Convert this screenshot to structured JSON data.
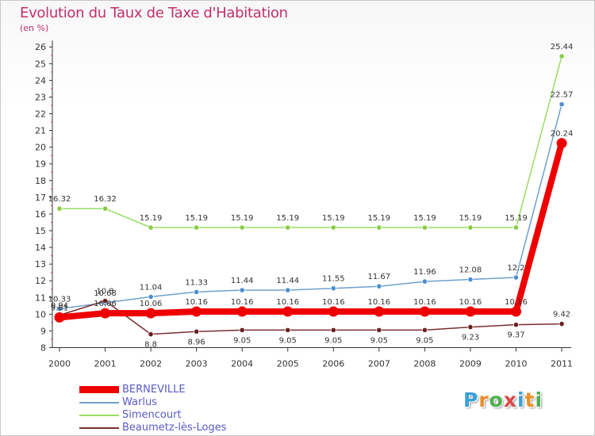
{
  "title": "Evolution du Taux de Taxe d'Habitation",
  "subtitle": "(en %)",
  "logo": {
    "text": "Proxiti",
    "letters": [
      "P",
      "r",
      "o",
      "x",
      "i",
      "t",
      "i"
    ],
    "colors": [
      "#3aa0d8",
      "#e8902a",
      "#4caf50",
      "#d94a4a",
      "#3aa0d8",
      "#e8902a",
      "#4caf50"
    ]
  },
  "chart_data": {
    "type": "line",
    "title": "Evolution du Taux de Taxe d'Habitation",
    "ylabel": "(en %)",
    "xlabel": "",
    "x": [
      "2000",
      "2001",
      "2002",
      "2003",
      "2004",
      "2005",
      "2006",
      "2007",
      "2008",
      "2009",
      "2010",
      "2011"
    ],
    "ylim": [
      8,
      26
    ],
    "yticks": [
      8,
      9,
      10,
      11,
      12,
      13,
      14,
      15,
      16,
      17,
      18,
      19,
      20,
      21,
      22,
      23,
      24,
      25,
      26
    ],
    "grid": false,
    "legend_position": "bottom-left",
    "series": [
      {
        "name": "BERNEVILLE",
        "color": "#ee0000",
        "bold": true,
        "values": [
          9.81,
          10.06,
          10.06,
          10.16,
          10.16,
          10.16,
          10.16,
          10.16,
          10.16,
          10.16,
          10.16,
          20.24
        ],
        "labels": [
          "9.81",
          "10.06",
          "10.06",
          "10.16",
          "10.16",
          "10.16",
          "10.16",
          "10.16",
          "10.16",
          "10.16",
          "10.16",
          "20.24"
        ]
      },
      {
        "name": "Warlus",
        "color": "#6fa0cc",
        "marker": "#4a8fd0",
        "values": [
          10.33,
          10.68,
          11.04,
          11.33,
          11.44,
          11.44,
          11.55,
          11.67,
          11.96,
          12.08,
          12.2,
          22.57
        ],
        "labels": [
          "10.33",
          "10.68",
          "11.04",
          "11.33",
          "11.44",
          "11.44",
          "11.55",
          "11.67",
          "11.96",
          "12.08",
          "12.2",
          "22.57"
        ]
      },
      {
        "name": "Simencourt",
        "color": "#99dd66",
        "marker": "#88cc44",
        "values": [
          16.32,
          16.32,
          15.19,
          15.19,
          15.19,
          15.19,
          15.19,
          15.19,
          15.19,
          15.19,
          15.19,
          25.44
        ],
        "labels": [
          "16.32",
          "16.32",
          "15.19",
          "15.19",
          "15.19",
          "15.19",
          "15.19",
          "15.19",
          "15.19",
          "15.19",
          "15.19",
          "25.44"
        ]
      },
      {
        "name": "Beaumetz-lès-Loges",
        "color": "#7a2e2e",
        "marker": "#6b1f1f",
        "values": [
          9.94,
          10.8,
          8.8,
          8.96,
          9.05,
          9.05,
          9.05,
          9.05,
          9.05,
          9.23,
          9.37,
          9.42
        ],
        "labels": [
          "9.94",
          "10.8",
          "8.8",
          "8.96",
          "9.05",
          "9.05",
          "9.05",
          "9.05",
          "9.05",
          "9.23",
          "9.37",
          "9.42"
        ]
      }
    ]
  }
}
